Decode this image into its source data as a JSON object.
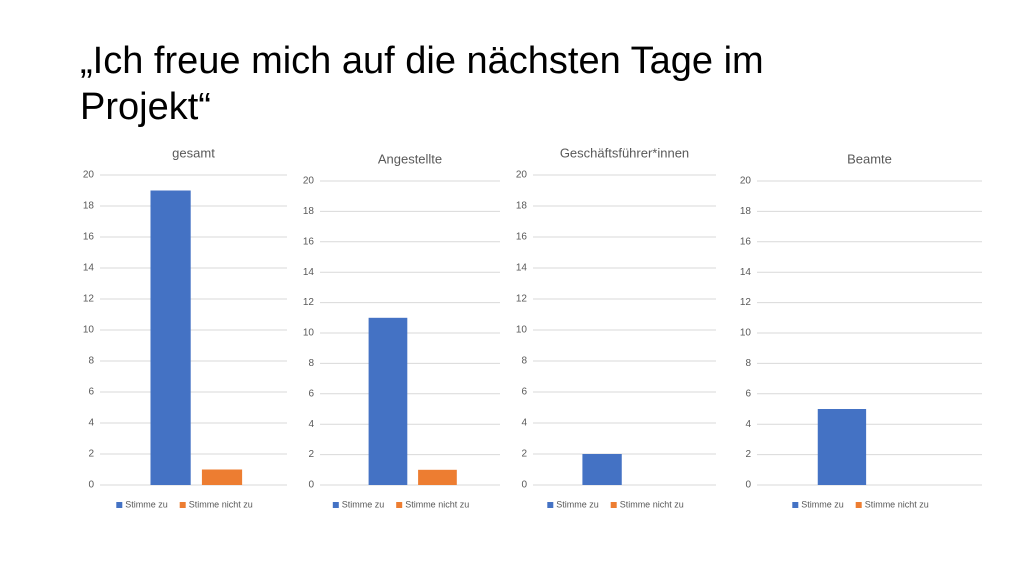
{
  "slide_title": "„Ich freue mich auf die nächsten Tage im Projekt“",
  "chart_data": [
    {
      "type": "bar",
      "title": "gesamt",
      "categories": [
        null
      ],
      "series": [
        {
          "name": "Stimme zu",
          "color": "#4472c4",
          "values": [
            19
          ]
        },
        {
          "name": "Stimme nicht zu",
          "color": "#ed7d31",
          "values": [
            1
          ]
        }
      ],
      "ylim": [
        0,
        20
      ],
      "yticks": [
        0,
        2,
        4,
        6,
        8,
        10,
        12,
        14,
        16,
        18,
        20
      ],
      "grid": true,
      "legend": "bottom"
    },
    {
      "type": "bar",
      "title": "Angestellte",
      "categories": [
        null
      ],
      "series": [
        {
          "name": "Stimme zu",
          "color": "#4472c4",
          "values": [
            11
          ]
        },
        {
          "name": "Stimme nicht zu",
          "color": "#ed7d31",
          "values": [
            1
          ]
        }
      ],
      "ylim": [
        0,
        20
      ],
      "yticks": [
        0,
        2,
        4,
        6,
        8,
        10,
        12,
        14,
        16,
        18,
        20
      ],
      "grid": true,
      "legend": "bottom"
    },
    {
      "type": "bar",
      "title": "Geschäftsführer*innen",
      "categories": [
        null
      ],
      "series": [
        {
          "name": "Stimme zu",
          "color": "#4472c4",
          "values": [
            2
          ]
        },
        {
          "name": "Stimme nicht zu",
          "color": "#ed7d31",
          "values": [
            0
          ]
        }
      ],
      "ylim": [
        0,
        20
      ],
      "yticks": [
        0,
        2,
        4,
        6,
        8,
        10,
        12,
        14,
        16,
        18,
        20
      ],
      "grid": true,
      "legend": "bottom"
    },
    {
      "type": "bar",
      "title": "Beamte",
      "categories": [
        null
      ],
      "series": [
        {
          "name": "Stimme zu",
          "color": "#4472c4",
          "values": [
            5
          ]
        },
        {
          "name": "Stimme nicht zu",
          "color": "#ed7d31",
          "values": [
            0
          ]
        }
      ],
      "ylim": [
        0,
        20
      ],
      "yticks": [
        0,
        2,
        4,
        6,
        8,
        10,
        12,
        14,
        16,
        18,
        20
      ],
      "grid": true,
      "legend": "bottom"
    }
  ]
}
